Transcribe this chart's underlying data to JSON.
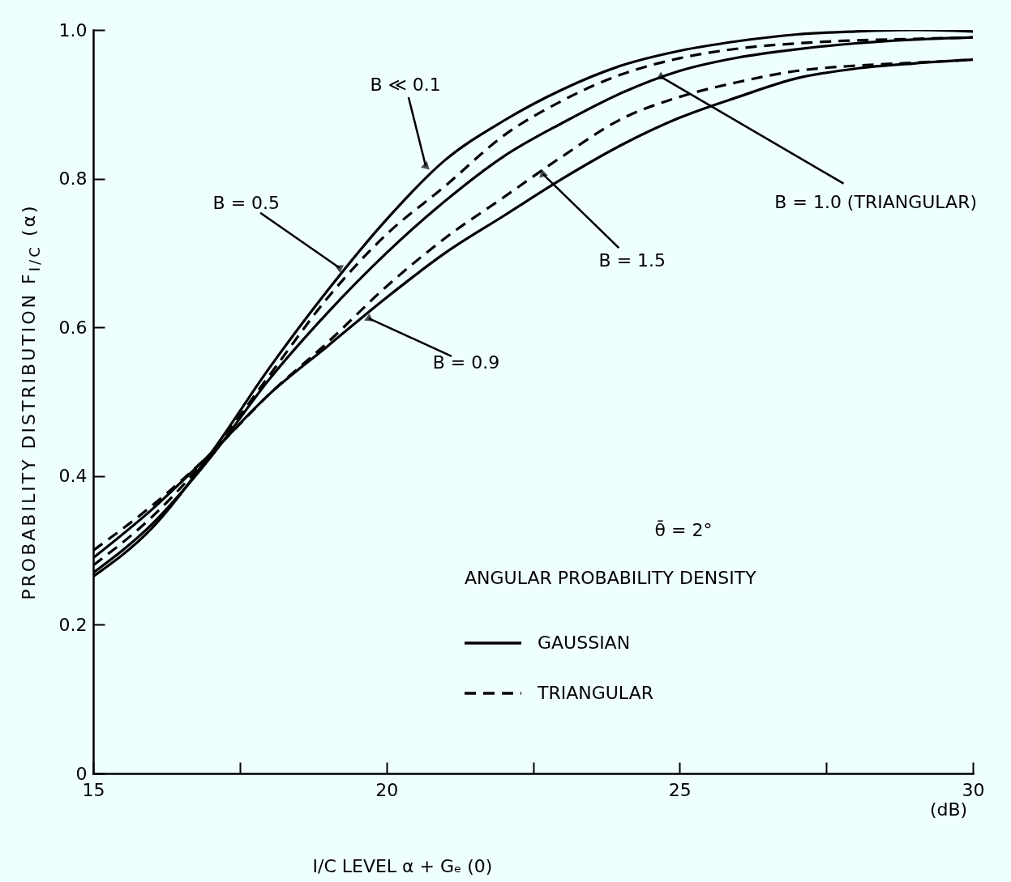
{
  "chart_data": {
    "type": "line",
    "xlabel": "I/C LEVEL α + Gₑ (0)",
    "ylabel": "PROBABILITY DISTRIBUTION F$_{I/C}$ (α)",
    "legend_title": "ANGULAR PROBABILITY DENSITY",
    "legend": "bottom right",
    "grid": false,
    "xlim": [
      15,
      30
    ],
    "xticks": [
      15,
      {
        "value": 17.5,
        "label": null
      },
      20,
      {
        "value": 22.5,
        "label": null
      },
      25,
      {
        "value": 27.5,
        "label": null
      },
      30
    ],
    "ylim": [
      0,
      1
    ],
    "yticks": [
      0,
      0.2,
      0.4,
      0.6,
      0.8,
      {
        "value": 1,
        "label": "1.0"
      }
    ],
    "x": [
      15,
      16,
      17,
      18,
      19,
      20,
      21,
      22,
      23,
      24,
      25,
      26,
      27,
      28,
      29,
      30
    ],
    "series": [
      {
        "name": "GAUSSIAN",
        "color": "#000000",
        "line_style": "solid",
        "values": [
          0.265,
          0.33,
          0.43,
          0.545,
          0.65,
          0.745,
          0.825,
          0.878,
          0.92,
          0.952,
          0.972,
          0.985,
          0.994,
          0.998,
          1.0,
          0.998
        ]
      },
      {
        "name": "TRIANGULAR",
        "color": "#000000",
        "line_style": "dashed",
        "values": [
          0.28,
          0.345,
          0.43,
          0.535,
          0.64,
          0.725,
          0.79,
          0.858,
          0.905,
          0.94,
          0.962,
          0.975,
          0.982,
          0.986,
          0.988,
          0.99
        ]
      },
      {
        "color": "#000000",
        "line_style": "solid",
        "values": [
          0.27,
          0.335,
          0.425,
          0.53,
          0.62,
          0.7,
          0.77,
          0.83,
          0.875,
          0.915,
          0.945,
          0.963,
          0.974,
          0.982,
          0.987,
          0.99
        ]
      },
      {
        "color": "#000000",
        "line_style": "dashed",
        "values": [
          0.3,
          0.36,
          0.43,
          0.51,
          0.58,
          0.655,
          0.72,
          0.775,
          0.83,
          0.88,
          0.91,
          0.93,
          0.945,
          0.952,
          0.956,
          0.96
        ]
      },
      {
        "color": "#000000",
        "line_style": "solid",
        "values": [
          0.29,
          0.355,
          0.43,
          0.51,
          0.575,
          0.64,
          0.7,
          0.75,
          0.8,
          0.845,
          0.882,
          0.91,
          0.935,
          0.948,
          0.955,
          0.96
        ]
      }
    ],
    "annotations": [
      {
        "text": "B ≪ 0.1",
        "x": 20.67,
        "y": 0.817
      },
      {
        "text": "B = 0.5",
        "x": 19.2,
        "y": 0.68
      },
      {
        "text": "B = 0.9",
        "x": 19.7,
        "y": 0.612
      },
      {
        "text": "B = 1.0 (TRIANGULAR)",
        "x": 24.68,
        "y": 0.937
      },
      {
        "text": "B = 1.5",
        "x": 22.67,
        "y": 0.806
      },
      "θ̄ = 2°",
      "(dB)"
    ]
  }
}
